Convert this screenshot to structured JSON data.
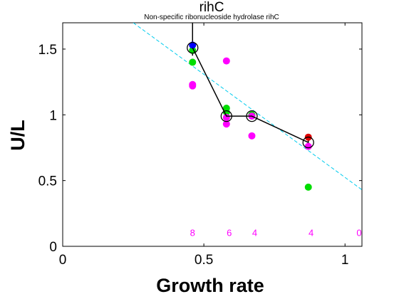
{
  "chart_data": {
    "type": "scatter",
    "title": "rihC",
    "subtitle": "Non-specific ribonucleoside hydrolase rihC",
    "xlabel": "Growth rate",
    "ylabel": "U/L",
    "xlim": [
      0,
      1.06
    ],
    "ylim": [
      0,
      1.7
    ],
    "xticks": [
      0,
      0.5,
      1
    ],
    "xtick_labels": [
      "0",
      "0.5",
      "1"
    ],
    "yticks": [
      0,
      0.5,
      1,
      1.5
    ],
    "ytick_labels": [
      "0",
      "0.5",
      "1",
      "1.5"
    ],
    "grid": false,
    "legend": "none",
    "colors": {
      "magenta": "#ff00ff",
      "green": "#00dd00",
      "red": "#dd0000",
      "blue": "#0000ff",
      "fit": "#00ccee",
      "line": "#000000"
    },
    "fit_line": {
      "x": [
        0.25,
        1.06
      ],
      "y": [
        1.7,
        0.43
      ]
    },
    "mean_series": {
      "x": [
        0.46,
        0.58,
        0.67,
        0.87
      ],
      "y": [
        1.51,
        0.99,
        0.99,
        0.79
      ],
      "yerr_upper": [
        1.72,
        1.0,
        1.0,
        0.81
      ],
      "yerr_lower": [
        1.45,
        0.97,
        0.98,
        0.76
      ]
    },
    "points": [
      {
        "x": 0.46,
        "y": 1.23,
        "color": "magenta"
      },
      {
        "x": 0.46,
        "y": 1.22,
        "color": "magenta"
      },
      {
        "x": 0.46,
        "y": 1.4,
        "color": "green"
      },
      {
        "x": 0.46,
        "y": 1.49,
        "color": "green"
      },
      {
        "x": 0.46,
        "y": 1.53,
        "color": "blue"
      },
      {
        "x": 0.58,
        "y": 1.41,
        "color": "magenta"
      },
      {
        "x": 0.58,
        "y": 1.05,
        "color": "green"
      },
      {
        "x": 0.58,
        "y": 1.02,
        "color": "green"
      },
      {
        "x": 0.58,
        "y": 0.98,
        "color": "magenta"
      },
      {
        "x": 0.58,
        "y": 0.93,
        "color": "magenta"
      },
      {
        "x": 0.67,
        "y": 1.0,
        "color": "green"
      },
      {
        "x": 0.67,
        "y": 0.99,
        "color": "magenta"
      },
      {
        "x": 0.67,
        "y": 0.84,
        "color": "magenta"
      },
      {
        "x": 0.87,
        "y": 0.83,
        "color": "red"
      },
      {
        "x": 0.87,
        "y": 0.76,
        "color": "magenta"
      },
      {
        "x": 0.87,
        "y": 0.45,
        "color": "green"
      }
    ],
    "count_labels": [
      {
        "x": 0.46,
        "text": "8"
      },
      {
        "x": 0.59,
        "text": "6"
      },
      {
        "x": 0.68,
        "text": "4"
      },
      {
        "x": 0.88,
        "text": "4"
      },
      {
        "x": 1.05,
        "text": "0"
      }
    ],
    "count_label_y": 0.1
  }
}
